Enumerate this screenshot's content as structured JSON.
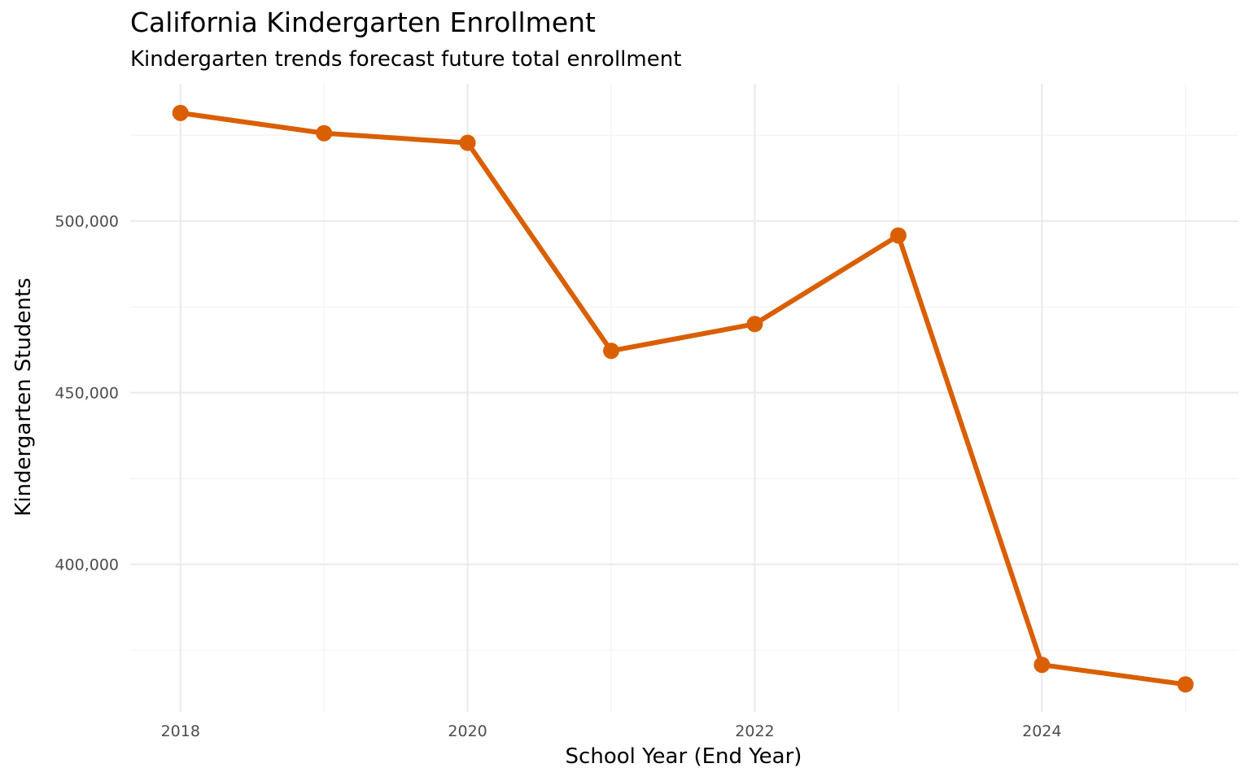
{
  "chart_data": {
    "type": "line",
    "title": "California Kindergarten Enrollment",
    "subtitle": "Kindergarten trends forecast future total enrollment",
    "xlabel": "School Year (End Year)",
    "ylabel": "Kindergarten Students",
    "x": [
      2018,
      2019,
      2020,
      2021,
      2022,
      2023,
      2024,
      2025
    ],
    "series": [
      {
        "name": "Kindergarten Students",
        "values": [
          531500,
          525600,
          522800,
          462200,
          470000,
          495800,
          370700,
          365000
        ]
      }
    ],
    "xlim": [
      2017.65,
      2025.37
    ],
    "ylim": [
      357000,
      540000
    ],
    "x_ticks": [
      2018,
      2020,
      2022,
      2024
    ],
    "x_tick_labels": [
      "2018",
      "2020",
      "2022",
      "2024"
    ],
    "y_ticks": [
      400000,
      450000,
      500000
    ],
    "y_tick_labels": [
      "400,000",
      "450,000",
      "500,000"
    ],
    "grid": true,
    "legend": "none",
    "colors": {
      "line": "#D95F02",
      "grid_major": "#EBEBEB",
      "grid_minor": "#F3F3F3",
      "tick_text": "#4D4D4D",
      "axis_title": "#000000"
    }
  }
}
